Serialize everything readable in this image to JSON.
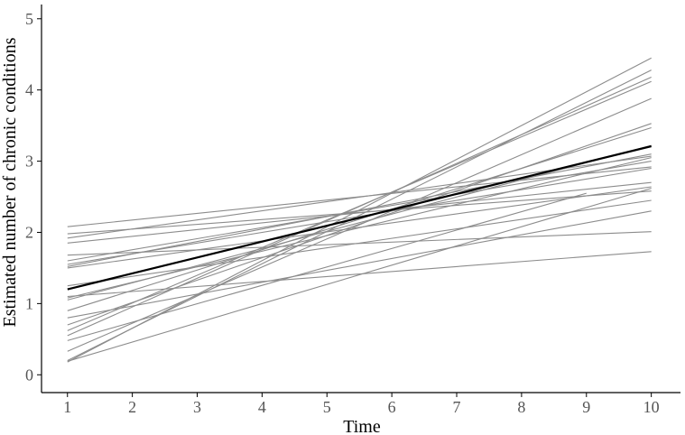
{
  "chart_data": {
    "type": "line",
    "xlabel": "Time",
    "ylabel": "Estimated number of chronic conditions",
    "xlim": [
      0.6,
      10.45
    ],
    "ylim": [
      -0.25,
      5.2
    ],
    "x_ticks": [
      "1",
      "2",
      "3",
      "4",
      "5",
      "6",
      "7",
      "8",
      "9",
      "10"
    ],
    "y_ticks": [
      "0",
      "1",
      "2",
      "3",
      "4",
      "5"
    ],
    "grid": false,
    "legend": "none",
    "colors": {
      "individual": "#8c8c8c",
      "mean": "#000000"
    },
    "series": [
      {
        "role": "individual",
        "x": [
          1,
          10
        ],
        "y": [
          0.18,
          4.45
        ]
      },
      {
        "role": "individual",
        "x": [
          1,
          10
        ],
        "y": [
          0.2,
          4.28
        ]
      },
      {
        "role": "individual",
        "x": [
          1,
          10
        ],
        "y": [
          0.33,
          3.88
        ]
      },
      {
        "role": "individual",
        "x": [
          1,
          10
        ],
        "y": [
          0.55,
          4.18
        ]
      },
      {
        "role": "individual",
        "x": [
          1,
          10
        ],
        "y": [
          0.62,
          4.12
        ]
      },
      {
        "role": "individual",
        "x": [
          1,
          10
        ],
        "y": [
          0.7,
          3.53
        ]
      },
      {
        "role": "individual",
        "x": [
          1,
          10
        ],
        "y": [
          0.8,
          2.3
        ]
      },
      {
        "role": "individual",
        "x": [
          1,
          10
        ],
        "y": [
          0.9,
          3.47
        ]
      },
      {
        "role": "individual",
        "x": [
          1,
          10
        ],
        "y": [
          1.05,
          3.22
        ]
      },
      {
        "role": "individual",
        "x": [
          1,
          10
        ],
        "y": [
          1.08,
          3.05
        ]
      },
      {
        "role": "individual",
        "x": [
          1,
          10
        ],
        "y": [
          1.1,
          1.73
        ]
      },
      {
        "role": "individual",
        "x": [
          1,
          10
        ],
        "y": [
          1.25,
          2.45
        ]
      },
      {
        "role": "individual",
        "x": [
          1,
          10
        ],
        "y": [
          1.5,
          2.64
        ]
      },
      {
        "role": "individual",
        "x": [
          1,
          10
        ],
        "y": [
          1.52,
          3.1
        ]
      },
      {
        "role": "individual",
        "x": [
          1,
          10
        ],
        "y": [
          1.55,
          2.9
        ]
      },
      {
        "role": "individual",
        "x": [
          1,
          10
        ],
        "y": [
          1.6,
          3.0
        ]
      },
      {
        "role": "individual",
        "x": [
          1,
          10
        ],
        "y": [
          1.68,
          2.01
        ]
      },
      {
        "role": "individual",
        "x": [
          1,
          10
        ],
        "y": [
          1.85,
          2.7
        ]
      },
      {
        "role": "individual",
        "x": [
          1,
          10
        ],
        "y": [
          1.92,
          3.07
        ]
      },
      {
        "role": "individual",
        "x": [
          1,
          10
        ],
        "y": [
          1.98,
          2.58
        ]
      },
      {
        "role": "individual",
        "x": [
          1,
          10
        ],
        "y": [
          2.08,
          2.92
        ]
      },
      {
        "role": "individual",
        "x": [
          1,
          10
        ],
        "y": [
          0.19,
          2.62
        ]
      },
      {
        "role": "individual",
        "x": [
          1,
          9
        ],
        "y": [
          0.48,
          2.55
        ]
      },
      {
        "role": "mean",
        "x": [
          1,
          10
        ],
        "y": [
          1.2,
          3.21
        ]
      }
    ]
  }
}
